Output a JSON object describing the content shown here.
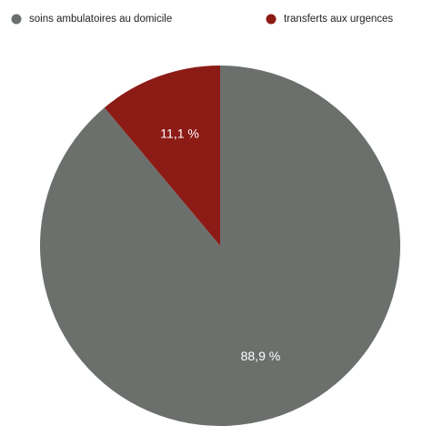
{
  "chart_data": {
    "type": "pie",
    "categories": [
      "soins ambulatoires au domicile",
      "transferts aux urgences"
    ],
    "values": [
      88.9,
      11.1
    ],
    "value_labels": [
      "88,9 %",
      "11,1 %"
    ],
    "colors": [
      "#6c706d",
      "#8c1b16"
    ],
    "legend": "top"
  }
}
